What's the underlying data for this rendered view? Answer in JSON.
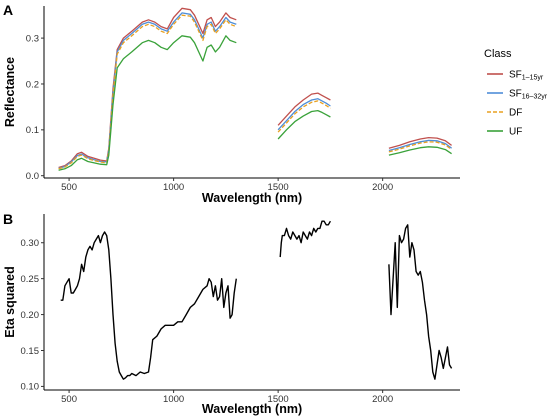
{
  "chart_data": [
    {
      "panel": "A",
      "type": "line",
      "xlabel": "Wavelength (nm)",
      "ylabel": "Reflectance",
      "xlim": [
        380,
        2370
      ],
      "ylim": [
        -0.005,
        0.37
      ],
      "x_ticks": [
        500,
        1000,
        1500,
        2000
      ],
      "y_ticks": [
        0.0,
        0.1,
        0.2,
        0.3
      ],
      "y_tick_labels": [
        "0.0",
        "0.1",
        "0.2",
        "0.3"
      ],
      "grid": false,
      "legend": {
        "title": "Class",
        "placement": "right",
        "entries": [
          {
            "main": "SF",
            "sub": "1–15yr",
            "color": "#c0504d",
            "dash": "solid"
          },
          {
            "main": "SF",
            "sub": "16–32yr",
            "color": "#4f8ed8",
            "dash": "solid"
          },
          {
            "main": "DF",
            "sub": "",
            "color": "#e8a020",
            "dash": "dashed"
          },
          {
            "main": "UF",
            "sub": "",
            "color": "#3aa23a",
            "dash": "solid"
          }
        ]
      },
      "series": [
        {
          "name": "SF1–15yr",
          "color": "#c0504d",
          "segments": [
            {
              "x": [
                450,
                480,
                510,
                540,
                560,
                590,
                620,
                650,
                680,
                690,
                710,
                730,
                760,
                800,
                850,
                880,
                910,
                940,
                970,
                1000,
                1040,
                1080,
                1100,
                1120,
                1140,
                1160,
                1180,
                1200,
                1220,
                1250,
                1270,
                1300
              ],
              "y": [
                0.018,
                0.022,
                0.032,
                0.048,
                0.051,
                0.042,
                0.038,
                0.034,
                0.032,
                0.06,
                0.19,
                0.275,
                0.3,
                0.315,
                0.335,
                0.34,
                0.335,
                0.325,
                0.32,
                0.345,
                0.365,
                0.362,
                0.35,
                0.33,
                0.31,
                0.34,
                0.345,
                0.325,
                0.335,
                0.355,
                0.345,
                0.34
              ]
            },
            {
              "x": [
                1500,
                1540,
                1580,
                1620,
                1660,
                1690,
                1710,
                1730,
                1750
              ],
              "y": [
                0.11,
                0.13,
                0.15,
                0.165,
                0.178,
                0.18,
                0.175,
                0.17,
                0.165
              ]
            },
            {
              "x": [
                2030,
                2080,
                2130,
                2180,
                2220,
                2260,
                2300,
                2330
              ],
              "y": [
                0.06,
                0.066,
                0.074,
                0.08,
                0.083,
                0.082,
                0.076,
                0.066
              ]
            }
          ]
        },
        {
          "name": "SF16–32yr",
          "color": "#4f8ed8",
          "segments": [
            {
              "x": [
                450,
                480,
                510,
                540,
                560,
                590,
                620,
                650,
                680,
                690,
                710,
                730,
                760,
                800,
                850,
                880,
                910,
                940,
                970,
                1000,
                1040,
                1080,
                1100,
                1120,
                1140,
                1160,
                1180,
                1200,
                1220,
                1250,
                1270,
                1300
              ],
              "y": [
                0.016,
                0.02,
                0.03,
                0.044,
                0.047,
                0.039,
                0.035,
                0.031,
                0.03,
                0.055,
                0.18,
                0.27,
                0.295,
                0.31,
                0.33,
                0.335,
                0.33,
                0.32,
                0.315,
                0.335,
                0.355,
                0.352,
                0.34,
                0.32,
                0.3,
                0.33,
                0.335,
                0.315,
                0.325,
                0.345,
                0.335,
                0.33
              ]
            },
            {
              "x": [
                1500,
                1540,
                1580,
                1620,
                1660,
                1690,
                1710,
                1730,
                1750
              ],
              "y": [
                0.1,
                0.12,
                0.14,
                0.155,
                0.165,
                0.168,
                0.163,
                0.158,
                0.152
              ]
            },
            {
              "x": [
                2030,
                2080,
                2130,
                2180,
                2220,
                2260,
                2300,
                2330
              ],
              "y": [
                0.055,
                0.061,
                0.068,
                0.074,
                0.077,
                0.076,
                0.07,
                0.06
              ]
            }
          ]
        },
        {
          "name": "DF",
          "color": "#e8a020",
          "segments": [
            {
              "x": [
                450,
                480,
                510,
                540,
                560,
                590,
                620,
                650,
                680,
                690,
                710,
                730,
                760,
                800,
                850,
                880,
                910,
                940,
                970,
                1000,
                1040,
                1080,
                1100,
                1120,
                1140,
                1160,
                1180,
                1200,
                1220,
                1250,
                1270,
                1300
              ],
              "y": [
                0.015,
                0.019,
                0.028,
                0.042,
                0.045,
                0.037,
                0.033,
                0.03,
                0.028,
                0.052,
                0.175,
                0.265,
                0.29,
                0.305,
                0.325,
                0.33,
                0.325,
                0.315,
                0.31,
                0.33,
                0.35,
                0.348,
                0.335,
                0.315,
                0.295,
                0.325,
                0.33,
                0.31,
                0.32,
                0.34,
                0.33,
                0.325
              ]
            },
            {
              "x": [
                1500,
                1540,
                1580,
                1620,
                1660,
                1690,
                1710,
                1730,
                1750
              ],
              "y": [
                0.095,
                0.115,
                0.135,
                0.15,
                0.16,
                0.163,
                0.158,
                0.153,
                0.147
              ]
            },
            {
              "x": [
                2030,
                2080,
                2130,
                2180,
                2220,
                2260,
                2300,
                2330
              ],
              "y": [
                0.052,
                0.058,
                0.065,
                0.071,
                0.074,
                0.073,
                0.067,
                0.057
              ]
            }
          ]
        },
        {
          "name": "UF",
          "color": "#3aa23a",
          "segments": [
            {
              "x": [
                450,
                480,
                510,
                540,
                560,
                590,
                620,
                650,
                680,
                690,
                710,
                730,
                760,
                800,
                850,
                880,
                910,
                940,
                970,
                1000,
                1040,
                1080,
                1100,
                1120,
                1140,
                1160,
                1180,
                1200,
                1220,
                1250,
                1270,
                1300
              ],
              "y": [
                0.012,
                0.015,
                0.022,
                0.035,
                0.038,
                0.031,
                0.028,
                0.025,
                0.024,
                0.045,
                0.155,
                0.235,
                0.255,
                0.27,
                0.29,
                0.295,
                0.29,
                0.28,
                0.275,
                0.29,
                0.305,
                0.302,
                0.29,
                0.27,
                0.25,
                0.28,
                0.285,
                0.27,
                0.28,
                0.305,
                0.295,
                0.29
              ]
            },
            {
              "x": [
                1500,
                1540,
                1580,
                1620,
                1660,
                1690,
                1710,
                1730,
                1750
              ],
              "y": [
                0.08,
                0.1,
                0.118,
                0.13,
                0.14,
                0.142,
                0.138,
                0.133,
                0.128
              ]
            },
            {
              "x": [
                2030,
                2080,
                2130,
                2180,
                2220,
                2260,
                2300,
                2330
              ],
              "y": [
                0.045,
                0.05,
                0.056,
                0.061,
                0.063,
                0.062,
                0.057,
                0.048
              ]
            }
          ]
        }
      ]
    },
    {
      "panel": "B",
      "type": "line",
      "xlabel": "Wavelength (nm)",
      "ylabel": "Eta squared",
      "xlim": [
        380,
        2370
      ],
      "ylim": [
        0.095,
        0.34
      ],
      "x_ticks": [
        500,
        1000,
        1500,
        2000
      ],
      "y_ticks": [
        0.1,
        0.15,
        0.2,
        0.25,
        0.3
      ],
      "y_tick_labels": [
        "0.10",
        "0.15",
        "0.20",
        "0.25",
        "0.30"
      ],
      "grid": false,
      "series": [
        {
          "name": "",
          "color": "#000000",
          "segments": [
            {
              "x": [
                460,
                470,
                480,
                490,
                500,
                510,
                520,
                530,
                540,
                550,
                560,
                570,
                580,
                590,
                600,
                610,
                620,
                630,
                640,
                650,
                660,
                670,
                680,
                690,
                700,
                710,
                720,
                730,
                740,
                750,
                760,
                770,
                780,
                790,
                800,
                820,
                840,
                860,
                880,
                890,
                900,
                920,
                940,
                960,
                980,
                1000,
                1020,
                1040,
                1060,
                1080,
                1100,
                1120,
                1140,
                1160,
                1170,
                1180,
                1190,
                1200,
                1210,
                1220,
                1230,
                1240,
                1250,
                1260,
                1270,
                1280,
                1290,
                1300
              ],
              "y": [
                0.22,
                0.22,
                0.24,
                0.245,
                0.25,
                0.23,
                0.23,
                0.235,
                0.24,
                0.25,
                0.27,
                0.26,
                0.28,
                0.29,
                0.295,
                0.29,
                0.3,
                0.305,
                0.31,
                0.3,
                0.31,
                0.315,
                0.31,
                0.29,
                0.25,
                0.2,
                0.16,
                0.135,
                0.12,
                0.115,
                0.11,
                0.112,
                0.115,
                0.115,
                0.118,
                0.115,
                0.12,
                0.118,
                0.12,
                0.14,
                0.165,
                0.17,
                0.18,
                0.185,
                0.185,
                0.185,
                0.19,
                0.19,
                0.2,
                0.21,
                0.215,
                0.225,
                0.235,
                0.24,
                0.25,
                0.245,
                0.225,
                0.24,
                0.22,
                0.225,
                0.25,
                0.21,
                0.23,
                0.24,
                0.195,
                0.2,
                0.23,
                0.25
              ]
            },
            {
              "x": [
                1510,
                1515,
                1520,
                1530,
                1540,
                1550,
                1560,
                1570,
                1580,
                1590,
                1600,
                1610,
                1620,
                1630,
                1640,
                1650,
                1660,
                1670,
                1680,
                1690,
                1700,
                1710,
                1720,
                1730,
                1740,
                1750
              ],
              "y": [
                0.28,
                0.3,
                0.31,
                0.31,
                0.32,
                0.31,
                0.305,
                0.315,
                0.31,
                0.305,
                0.31,
                0.3,
                0.315,
                0.31,
                0.305,
                0.315,
                0.31,
                0.32,
                0.315,
                0.32,
                0.32,
                0.33,
                0.33,
                0.325,
                0.325,
                0.33
              ]
            },
            {
              "x": [
                2030,
                2040,
                2050,
                2060,
                2070,
                2080,
                2090,
                2100,
                2110,
                2120,
                2130,
                2140,
                2150,
                2160,
                2170,
                2180,
                2190,
                2200,
                2210,
                2220,
                2230,
                2240,
                2250,
                2260,
                2270,
                2280,
                2290,
                2300,
                2310,
                2320,
                2330
              ],
              "y": [
                0.27,
                0.2,
                0.25,
                0.3,
                0.21,
                0.31,
                0.3,
                0.305,
                0.32,
                0.325,
                0.28,
                0.3,
                0.29,
                0.26,
                0.255,
                0.26,
                0.245,
                0.22,
                0.2,
                0.17,
                0.15,
                0.12,
                0.11,
                0.13,
                0.15,
                0.14,
                0.125,
                0.14,
                0.155,
                0.13,
                0.125
              ]
            }
          ]
        }
      ]
    }
  ]
}
